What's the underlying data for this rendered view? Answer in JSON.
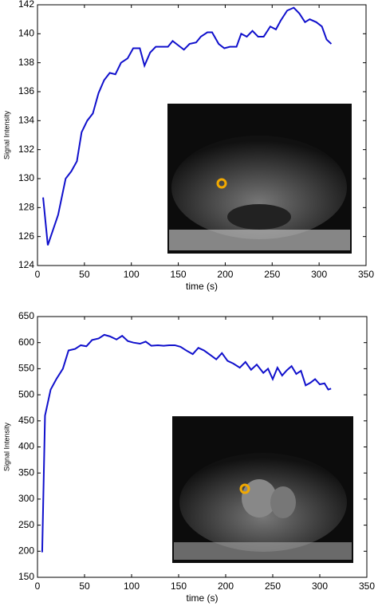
{
  "chart_data": [
    {
      "type": "line",
      "y_label": "Signal Intensity",
      "x_label": "time (s)",
      "color": "#1010cc",
      "xlim": [
        0,
        350
      ],
      "xticks": [
        0,
        50,
        100,
        150,
        200,
        250,
        300,
        350
      ],
      "ylim": [
        124,
        142
      ],
      "yticks": [
        124,
        126,
        128,
        130,
        132,
        134,
        136,
        138,
        140,
        142
      ],
      "series": [
        {
          "name": "Signal Intensity",
          "color": "#1010cc",
          "x": [
            6,
            11,
            22,
            30,
            36,
            42,
            47,
            53,
            59,
            65,
            71,
            77,
            83,
            89,
            96,
            102,
            109,
            114,
            120,
            126,
            132,
            139,
            144,
            150,
            156,
            162,
            169,
            174,
            181,
            186,
            193,
            199,
            205,
            212,
            217,
            223,
            229,
            235,
            241,
            248,
            254,
            259,
            266,
            273,
            279,
            285,
            290,
            297,
            303,
            308,
            313
          ],
          "values": [
            128.7,
            125.4,
            127.5,
            130,
            130.5,
            131.2,
            133.2,
            134,
            134.5,
            135.9,
            136.8,
            137.3,
            137.2,
            138,
            138.3,
            139,
            139,
            137.8,
            138.7,
            139.1,
            139.1,
            139.1,
            139.5,
            139.2,
            138.9,
            139.3,
            139.4,
            139.8,
            140.1,
            140.1,
            139.3,
            139,
            139.1,
            139.1,
            140,
            139.8,
            140.2,
            139.8,
            139.8,
            140.5,
            140.3,
            140.9,
            141.6,
            141.8,
            141.4,
            140.8,
            141,
            140.8,
            140.5,
            139.6,
            139.3
          ]
        }
      ]
    },
    {
      "type": "line",
      "y_label": "Signal Intensity",
      "x_label": "time (s)",
      "color": "#1010cc",
      "xlim": [
        0,
        350
      ],
      "xticks": [
        0,
        50,
        100,
        150,
        200,
        250,
        300,
        350
      ],
      "ylim": [
        150,
        650
      ],
      "yticks": [
        150,
        200,
        250,
        300,
        350,
        400,
        450,
        500,
        550,
        600,
        650
      ],
      "series": [
        {
          "name": "Signal Intensity",
          "color": "#1010cc",
          "x": [
            5,
            8,
            14,
            20,
            27,
            33,
            40,
            46,
            52,
            58,
            65,
            71,
            77,
            84,
            90,
            96,
            102,
            109,
            115,
            121,
            128,
            134,
            140,
            146,
            152,
            159,
            165,
            171,
            177,
            184,
            190,
            196,
            202,
            208,
            215,
            221,
            227,
            233,
            240,
            245,
            250,
            255,
            260,
            265,
            270,
            275,
            280,
            285,
            290,
            295,
            300,
            305,
            309,
            312
          ],
          "values": [
            198,
            460,
            510,
            530,
            550,
            585,
            588,
            595,
            593,
            605,
            608,
            615,
            612,
            606,
            613,
            603,
            600,
            598,
            602,
            594,
            595,
            594,
            595,
            595,
            592,
            584,
            578,
            590,
            585,
            576,
            568,
            580,
            565,
            560,
            552,
            563,
            548,
            558,
            542,
            550,
            530,
            552,
            537,
            547,
            555,
            540,
            546,
            518,
            523,
            530,
            520,
            522,
            510,
            512
          ]
        }
      ]
    }
  ]
}
